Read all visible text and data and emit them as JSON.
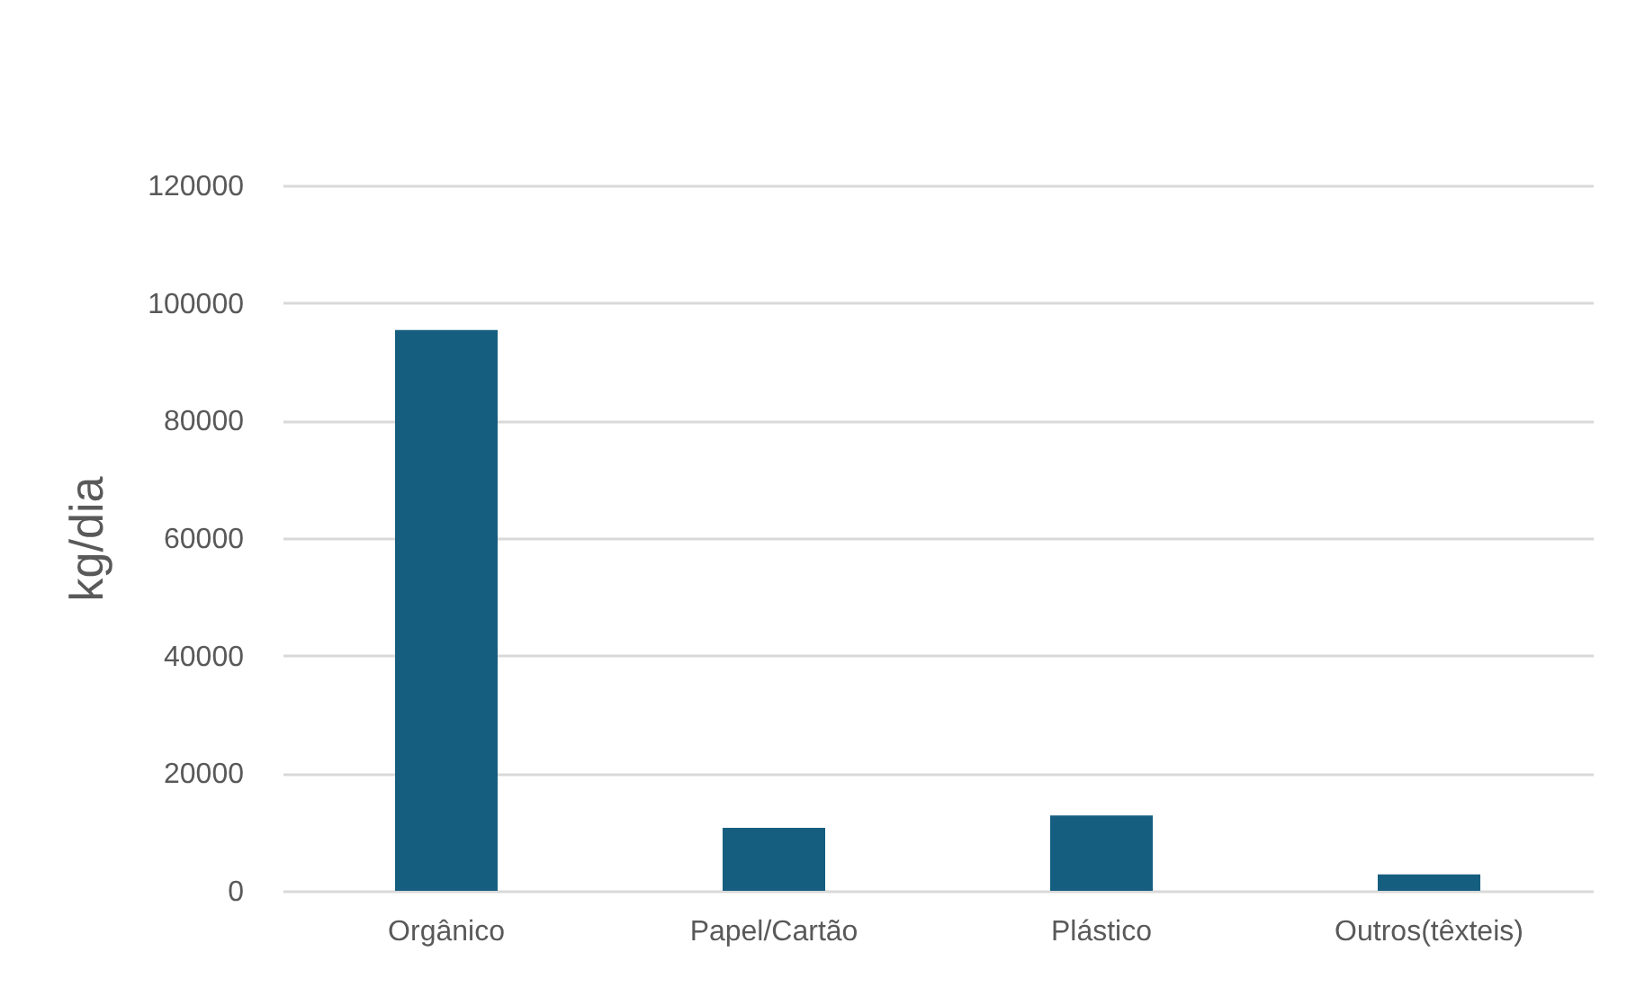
{
  "chart_data": {
    "type": "bar",
    "ylabel": "kg/dia",
    "categories": [
      "Orgânico",
      "Papel/Cartão",
      "Plástico",
      "Outros(têxteis)"
    ],
    "values": [
      95400,
      10700,
      12800,
      2800
    ],
    "color": "#165e80",
    "ylim": [
      0,
      120000
    ],
    "yticks": [
      0,
      20000,
      40000,
      60000,
      80000,
      100000,
      120000
    ],
    "grid": "y"
  }
}
